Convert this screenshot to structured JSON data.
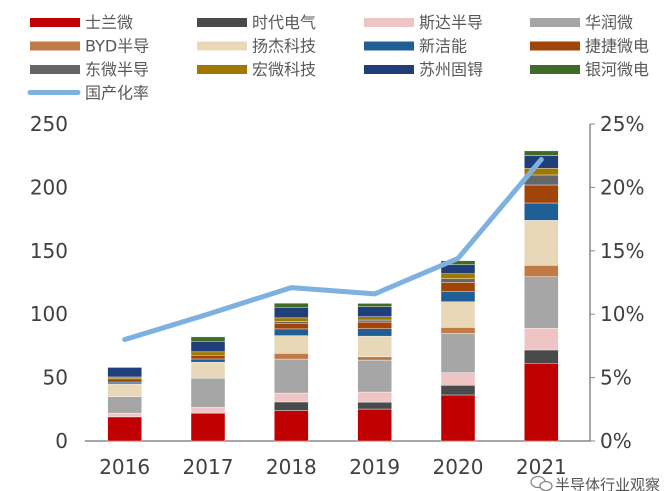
{
  "chart_data": {
    "type": "bar",
    "stacked": true,
    "categories": [
      "2016",
      "2017",
      "2018",
      "2019",
      "2020",
      "2021"
    ],
    "series": [
      {
        "name": "士兰微",
        "color": "#C00000",
        "values": [
          19,
          22,
          24,
          25.2,
          36.3,
          61.3
        ]
      },
      {
        "name": "时代电气",
        "color": "#4A4A4A",
        "values": [
          0,
          0,
          6.8,
          5.5,
          7.6,
          10.5
        ]
      },
      {
        "name": "斯达半导",
        "color": "#EEC4C4",
        "values": [
          3,
          4.5,
          7,
          7.9,
          10,
          17.1
        ]
      },
      {
        "name": "华润微",
        "color": "#A6A6A6",
        "values": [
          13,
          23,
          26.8,
          25.2,
          31,
          40.7
        ]
      },
      {
        "name": "BYD半导",
        "color": "#C07A45",
        "values": [
          0,
          0,
          4.5,
          2.6,
          4.7,
          8.9
        ]
      },
      {
        "name": "扬杰科技",
        "color": "#E8D8B8",
        "values": [
          10,
          12.6,
          14,
          16.3,
          20.2,
          35.5
        ]
      },
      {
        "name": "新洁能",
        "color": "#1F5F96",
        "values": [
          1.5,
          2.6,
          5.3,
          5.8,
          7.9,
          13.7
        ]
      },
      {
        "name": "捷捷微电",
        "color": "#A0440A",
        "values": [
          2.5,
          3,
          4.5,
          5.3,
          7.4,
          14.2
        ]
      },
      {
        "name": "东微半导",
        "color": "#666666",
        "values": [
          0,
          0,
          1.3,
          1.6,
          2.9,
          7.9
        ]
      },
      {
        "name": "宏微科技",
        "color": "#A07800",
        "values": [
          1.5,
          2.6,
          2.9,
          2.6,
          3.9,
          5.3
        ]
      },
      {
        "name": "苏州固锝",
        "color": "#203F7A",
        "values": [
          7.5,
          8.4,
          8.4,
          7.9,
          7.1,
          10
        ]
      },
      {
        "name": "银河微电",
        "color": "#3F6A28",
        "values": [
          0,
          3.4,
          3.2,
          2.6,
          3.2,
          3.7
        ]
      }
    ],
    "line": {
      "name": "国产化率",
      "color": "#7EB1E0",
      "values": [
        8.0,
        10.0,
        12.1,
        11.6,
        14.4,
        22.2
      ],
      "unit": "%"
    },
    "ylim": [
      0,
      250
    ],
    "yticks": [
      "0",
      "50",
      "100",
      "150",
      "200",
      "250"
    ],
    "y2lim": [
      0,
      25
    ],
    "y2ticks": [
      "0%",
      "5%",
      "10%",
      "15%",
      "20%",
      "25%"
    ],
    "grid": false,
    "legend": "top"
  },
  "watermark": "半导体行业观察"
}
